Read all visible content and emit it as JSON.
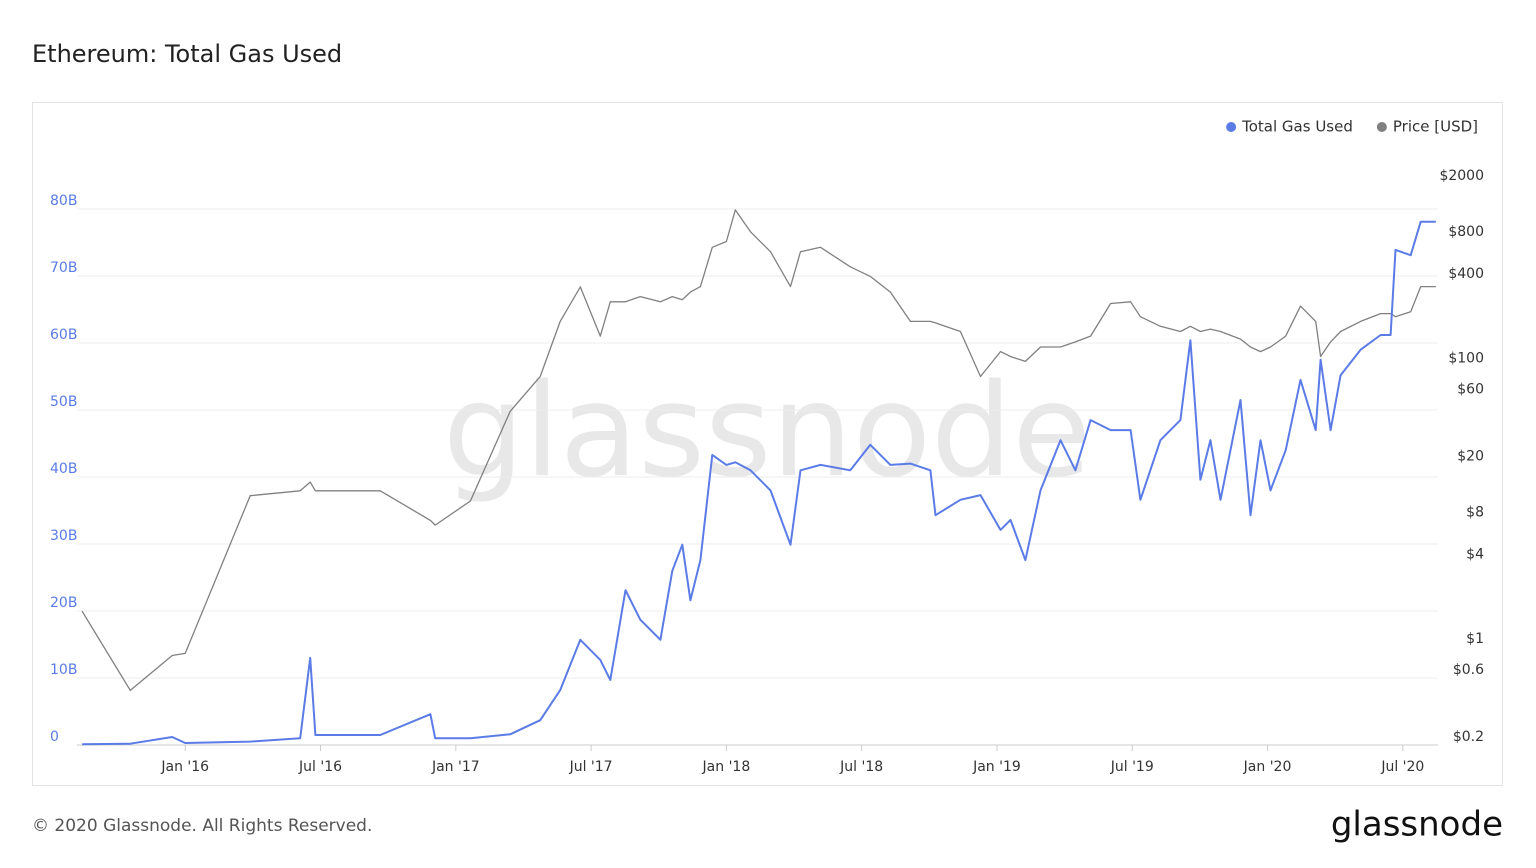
{
  "chart_data": {
    "type": "line",
    "title": "Ethereum: Total Gas Used",
    "watermark": "glassnode",
    "footer": "© 2020 Glassnode. All Rights Reserved.",
    "logo": "glassnode",
    "legend": "top-right",
    "grid": true,
    "y2scale": "log",
    "xlim": [
      2015.6,
      2020.63
    ],
    "xticks": [
      {
        "value": 2016,
        "label": "Jan '16"
      },
      {
        "value": 2016.5,
        "label": "Jul '16"
      },
      {
        "value": 2017,
        "label": "Jan '17"
      },
      {
        "value": 2017.5,
        "label": "Jul '17"
      },
      {
        "value": 2018,
        "label": "Jan '18"
      },
      {
        "value": 2018.5,
        "label": "Jul '18"
      },
      {
        "value": 2019,
        "label": "Jan '19"
      },
      {
        "value": 2019.5,
        "label": "Jul '19"
      },
      {
        "value": 2020,
        "label": "Jan '20"
      },
      {
        "value": 2020.5,
        "label": "Jul '20"
      }
    ],
    "ylim": [
      0,
      90
    ],
    "yticks": [
      0,
      {
        "value": 10,
        "label": "10B"
      },
      {
        "value": 20,
        "label": "20B"
      },
      {
        "value": 30,
        "label": "30B"
      },
      {
        "value": 40,
        "label": "40B"
      },
      {
        "value": 50,
        "label": "50B"
      },
      {
        "value": 60,
        "label": "60B"
      },
      {
        "value": 70,
        "label": "70B"
      },
      {
        "value": 80,
        "label": "80B"
      }
    ],
    "y2lim": [
      0.2,
      4000
    ],
    "y2ticks": [
      {
        "value": 0.2,
        "label": "$0.2"
      },
      {
        "value": 0.6,
        "label": "$0.6"
      },
      {
        "value": 1,
        "label": "$1"
      },
      {
        "value": 4,
        "label": "$4"
      },
      {
        "value": 8,
        "label": "$8"
      },
      {
        "value": 20,
        "label": "$20"
      },
      {
        "value": 60,
        "label": "$60"
      },
      {
        "value": 100,
        "label": "$100"
      },
      {
        "value": 400,
        "label": "$400"
      },
      {
        "value": 800,
        "label": "$800"
      },
      {
        "value": 2000,
        "label": "$2000"
      }
    ],
    "x": [
      2015.619,
      2015.797,
      2015.952,
      2016.0,
      2016.24,
      2016.425,
      2016.462,
      2016.481,
      2016.721,
      2016.906,
      2016.924,
      2017.054,
      2017.201,
      2017.312,
      2017.386,
      2017.46,
      2017.534,
      2017.571,
      2017.627,
      2017.682,
      2017.756,
      2017.8,
      2017.837,
      2017.867,
      2017.904,
      2017.948,
      2018.0,
      2018.033,
      2018.089,
      2018.163,
      2018.237,
      2018.274,
      2018.348,
      2018.458,
      2018.532,
      2018.606,
      2018.68,
      2018.754,
      2018.773,
      2018.865,
      2018.939,
      2019.013,
      2019.05,
      2019.105,
      2019.161,
      2019.235,
      2019.29,
      2019.346,
      2019.42,
      2019.494,
      2019.53,
      2019.604,
      2019.678,
      2019.715,
      2019.752,
      2019.789,
      2019.826,
      2019.9,
      2019.937,
      2019.974,
      2020.011,
      2020.067,
      2020.122,
      2020.178,
      2020.196,
      2020.233,
      2020.27,
      2020.344,
      2020.418,
      2020.455,
      2020.473,
      2020.529,
      2020.566,
      2020.622
    ],
    "series": [
      {
        "name": "Total Gas Used",
        "color": "#5b7be6",
        "values": [
          0.1,
          0.2,
          1.2,
          0.3,
          0.5,
          1.0,
          13,
          1.5,
          1.5,
          4.6,
          1.0,
          1.0,
          1.6,
          3.7,
          8.2,
          15.7,
          12.7,
          9.7,
          23.1,
          18.7,
          15.7,
          26,
          29.9,
          21.6,
          27.6,
          43.3,
          41.8,
          42.2,
          41,
          38,
          29.9,
          41,
          41.8,
          41,
          44.8,
          41.8,
          42,
          41,
          34.3,
          36.6,
          37.3,
          32.1,
          33.6,
          27.6,
          38,
          45.5,
          41,
          48.5,
          47,
          47,
          36.6,
          45.5,
          48.5,
          60.4,
          39.6,
          45.5,
          36.6,
          51.5,
          34.3,
          45.5,
          38,
          44,
          54.5,
          47,
          57.5,
          47,
          55.2,
          59,
          61.2,
          61.2,
          73.9,
          73.1,
          78.1,
          78.1
        ]
      },
      {
        "name": "Price [USD]",
        "color": "#808080",
        "axis": "y2",
        "values": [
          1.8,
          0.49,
          0.87,
          0.9,
          12,
          13,
          15,
          13,
          13,
          8,
          7.4,
          11,
          48,
          85,
          210,
          370,
          165,
          290,
          290,
          316,
          290,
          316,
          300,
          340,
          372,
          710,
          780,
          1312,
          915,
          660,
          372,
          660,
          710,
          515,
          440,
          340,
          210,
          210,
          205,
          178,
          85,
          128,
          118,
          109,
          138,
          138,
          150,
          165,
          282,
          290,
          227,
          194,
          178,
          194,
          178,
          185,
          178,
          157,
          138,
          128,
          138,
          165,
          270,
          210,
          118,
          150,
          178,
          210,
          239,
          239,
          227,
          246,
          372,
          372
        ]
      }
    ]
  }
}
